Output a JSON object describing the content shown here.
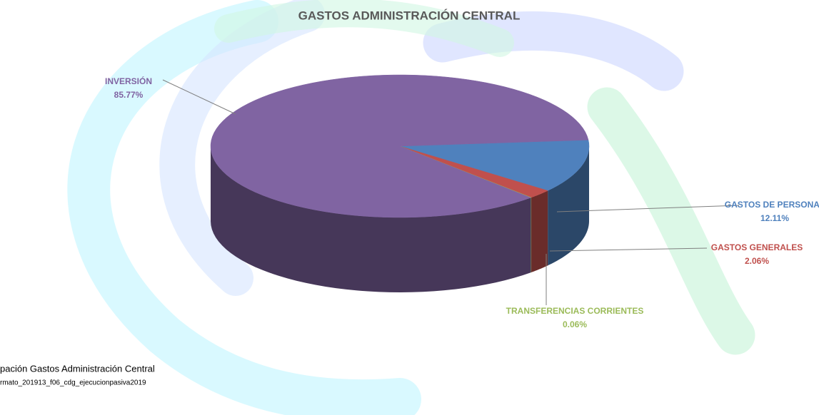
{
  "chart_data": {
    "type": "pie",
    "title": "GASTOS ADMINISTRACIÓN CENTRAL",
    "categories": [
      "GASTOS DE PERSONAL",
      "GASTOS GENERALES",
      "TRANSFERENCIAS CORRIENTES",
      "INVERSIÓN"
    ],
    "values": [
      12.11,
      2.06,
      0.06,
      85.77
    ],
    "value_labels": [
      "12.11%",
      "2.06%",
      "0.06%",
      "85.77%"
    ],
    "colors": [
      "#4f81bd",
      "#c0504d",
      "#9bbb59",
      "#8064a2"
    ]
  },
  "notes": [
    "pación Gastos Administración Central",
    "rmato_201913_f06_cdg_ejecucionpasiva2019"
  ]
}
